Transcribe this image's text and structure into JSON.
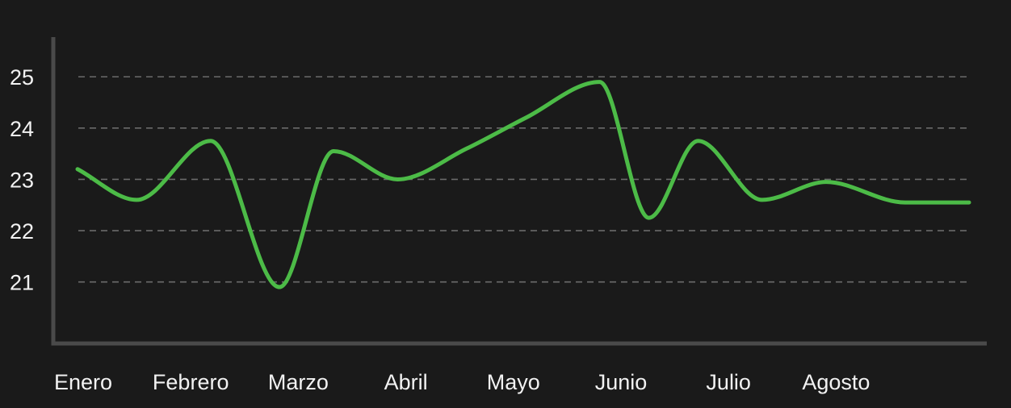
{
  "chart_data": {
    "type": "line",
    "categories": [
      "Enero",
      "Febrero",
      "Marzo",
      "Abril",
      "Mayo",
      "Junio",
      "Julio",
      "Agosto"
    ],
    "y_ticks": [
      21,
      22,
      23,
      24,
      25
    ],
    "ylim": [
      19.8,
      25.9
    ],
    "grid": true,
    "series": [
      {
        "color": "#4cbb47",
        "x": [
          0,
          0.6,
          1.35,
          2.05,
          2.6,
          3.25,
          3.95,
          4.55,
          5.3,
          5.8,
          6.3,
          6.95,
          7.6,
          8.4,
          9.05
        ],
        "values": [
          23.2,
          22.6,
          23.75,
          20.9,
          23.55,
          23.0,
          23.6,
          24.2,
          24.9,
          22.25,
          23.75,
          22.6,
          22.95,
          22.55,
          22.55
        ]
      }
    ]
  },
  "colors": {
    "background": "#1a1a1a",
    "axis": "#4a4a4a",
    "grid": "#6a6a6a",
    "text": "#f2f2f2",
    "series": "#4cbb47"
  }
}
